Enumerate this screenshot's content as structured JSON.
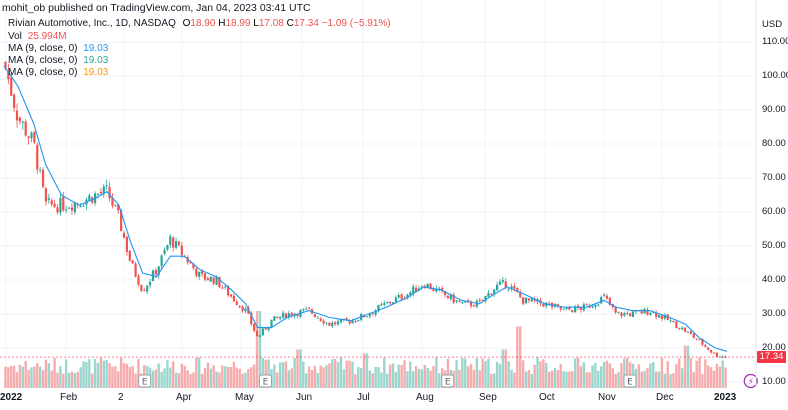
{
  "header": {
    "published_line": "mohit_ob published on TradingView.com, Jan 04, 2023 03:41 UTC"
  },
  "symbol": {
    "name": "Rivian Automotive, Inc., 1D, NASDAQ",
    "open_label": "O",
    "open": "18.90",
    "high_label": "H",
    "high": "18.99",
    "low_label": "L",
    "low": "17.08",
    "close_label": "C",
    "close": "17.34",
    "change": "−1.09 (−5.91%)"
  },
  "indicators": {
    "vol_label": "Vol",
    "vol_value": "25.994M",
    "ma": [
      {
        "label": "MA (9, close, 0)",
        "value": "19.03",
        "color": "#2196f3"
      },
      {
        "label": "MA (9, close, 0)",
        "value": "19.03",
        "color": "#26a69a"
      },
      {
        "label": "MA (9, close, 0)",
        "value": "19.03",
        "color": "#ff9800"
      }
    ]
  },
  "price_axis": {
    "currency": "USD",
    "current_price": "17.34",
    "ticks": [
      "110.00",
      "100.00",
      "90.00",
      "80.00",
      "70.00",
      "60.00",
      "50.00",
      "40.00",
      "30.00",
      "20.00",
      "10.00"
    ]
  },
  "colors": {
    "up": "#26a69a",
    "down": "#ef5350",
    "vol_up": "#8fd2c8",
    "vol_down": "#f5a3a3",
    "ma": "#2196f3",
    "grid": "#f0f3fa"
  },
  "chart_data": {
    "type": "candlestick",
    "title": "Rivian Automotive, Inc., 1D, NASDAQ",
    "ylabel": "USD",
    "ylim": [
      10,
      112
    ],
    "x_ticks": [
      "2022",
      "Feb",
      "2",
      "Apr",
      "May",
      "Jun",
      "Jul",
      "Aug",
      "Sep",
      "Oct",
      "Nov",
      "Dec",
      "2023"
    ],
    "events": [
      {
        "type": "earnings",
        "label": "E",
        "date": "2022-03"
      },
      {
        "type": "earnings",
        "label": "E",
        "date": "2022-05"
      },
      {
        "type": "earnings",
        "label": "E",
        "date": "2022-08"
      },
      {
        "type": "earnings",
        "label": "E",
        "date": "2022-11"
      },
      {
        "type": "split_or_dividend",
        "label": "⚡",
        "date": "2023-01"
      }
    ],
    "close_path": [
      [
        "2022-01-03",
        104
      ],
      [
        "2022-01-10",
        88
      ],
      [
        "2022-01-18",
        80
      ],
      [
        "2022-01-24",
        62
      ],
      [
        "2022-02-01",
        62
      ],
      [
        "2022-02-10",
        63
      ],
      [
        "2022-02-18",
        65
      ],
      [
        "2022-02-24",
        66
      ],
      [
        "2022-03-02",
        58
      ],
      [
        "2022-03-08",
        45
      ],
      [
        "2022-03-14",
        37
      ],
      [
        "2022-03-21",
        43
      ],
      [
        "2022-03-28",
        52
      ],
      [
        "2022-04-04",
        47
      ],
      [
        "2022-04-12",
        41
      ],
      [
        "2022-04-20",
        40
      ],
      [
        "2022-04-28",
        35
      ],
      [
        "2022-05-05",
        31
      ],
      [
        "2022-05-11",
        23
      ],
      [
        "2022-05-18",
        28
      ],
      [
        "2022-05-26",
        30
      ],
      [
        "2022-06-06",
        31
      ],
      [
        "2022-06-16",
        27
      ],
      [
        "2022-06-27",
        28
      ],
      [
        "2022-07-06",
        30
      ],
      [
        "2022-07-15",
        33
      ],
      [
        "2022-07-26",
        36
      ],
      [
        "2022-08-03",
        39
      ],
      [
        "2022-08-12",
        36
      ],
      [
        "2022-08-22",
        33
      ],
      [
        "2022-08-31",
        33
      ],
      [
        "2022-09-08",
        38
      ],
      [
        "2022-09-14",
        39
      ],
      [
        "2022-09-22",
        34
      ],
      [
        "2022-10-03",
        33
      ],
      [
        "2022-10-13",
        31
      ],
      [
        "2022-10-24",
        32
      ],
      [
        "2022-11-02",
        35
      ],
      [
        "2022-11-08",
        30
      ],
      [
        "2022-11-16",
        30
      ],
      [
        "2022-11-25",
        31
      ],
      [
        "2022-12-05",
        28
      ],
      [
        "2022-12-13",
        25
      ],
      [
        "2022-12-20",
        22
      ],
      [
        "2022-12-28",
        18
      ],
      [
        "2023-01-03",
        17.34
      ]
    ],
    "ma9_path": [
      [
        "2022-01-03",
        103
      ],
      [
        "2022-01-10",
        97
      ],
      [
        "2022-01-18",
        86
      ],
      [
        "2022-01-24",
        74
      ],
      [
        "2022-02-01",
        65
      ],
      [
        "2022-02-10",
        62
      ],
      [
        "2022-02-18",
        64
      ],
      [
        "2022-02-24",
        66
      ],
      [
        "2022-03-02",
        62
      ],
      [
        "2022-03-08",
        51
      ],
      [
        "2022-03-14",
        42
      ],
      [
        "2022-03-21",
        41
      ],
      [
        "2022-03-28",
        47
      ],
      [
        "2022-04-04",
        47
      ],
      [
        "2022-04-12",
        43
      ],
      [
        "2022-04-20",
        41
      ],
      [
        "2022-04-28",
        37
      ],
      [
        "2022-05-05",
        33
      ],
      [
        "2022-05-11",
        26
      ],
      [
        "2022-05-18",
        26
      ],
      [
        "2022-05-26",
        29
      ],
      [
        "2022-06-06",
        31
      ],
      [
        "2022-06-16",
        29
      ],
      [
        "2022-06-27",
        28
      ],
      [
        "2022-07-06",
        30
      ],
      [
        "2022-07-15",
        32
      ],
      [
        "2022-07-26",
        35
      ],
      [
        "2022-08-03",
        38
      ],
      [
        "2022-08-12",
        37
      ],
      [
        "2022-08-22",
        34
      ],
      [
        "2022-08-31",
        33
      ],
      [
        "2022-09-08",
        36
      ],
      [
        "2022-09-14",
        38
      ],
      [
        "2022-09-22",
        36
      ],
      [
        "2022-10-03",
        33
      ],
      [
        "2022-10-13",
        32
      ],
      [
        "2022-10-24",
        32
      ],
      [
        "2022-11-02",
        34
      ],
      [
        "2022-11-08",
        32
      ],
      [
        "2022-11-16",
        31
      ],
      [
        "2022-11-25",
        31
      ],
      [
        "2022-12-05",
        29
      ],
      [
        "2022-12-13",
        27
      ],
      [
        "2022-12-20",
        23
      ],
      [
        "2022-12-28",
        20
      ],
      [
        "2023-01-03",
        19.03
      ]
    ],
    "volume_spikes": [
      {
        "date": "2022-05-11",
        "relative": 1.0
      },
      {
        "date": "2022-06-01",
        "relative": 0.5
      },
      {
        "date": "2022-07-05",
        "relative": 0.45
      },
      {
        "date": "2022-08-15",
        "relative": 0.35
      },
      {
        "date": "2022-09-12",
        "relative": 0.5
      },
      {
        "date": "2022-09-20",
        "relative": 0.8
      },
      {
        "date": "2022-12-14",
        "relative": 0.55
      }
    ]
  }
}
